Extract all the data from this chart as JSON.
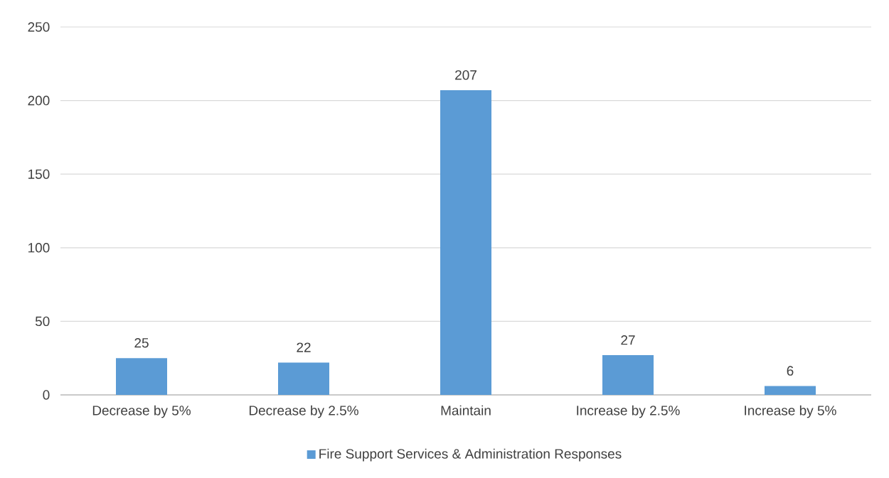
{
  "chart_data": {
    "type": "bar",
    "categories": [
      "Decrease by 5%",
      "Decrease by 2.5%",
      "Maintain",
      "Increase by 2.5%",
      "Increase by 5%"
    ],
    "series": [
      {
        "name": "Fire Support Services & Administration Responses",
        "color": "#5b9bd5",
        "values": [
          25,
          22,
          207,
          27,
          6
        ]
      }
    ],
    "ylim": [
      0,
      250
    ],
    "yticks": [
      0,
      50,
      100,
      150,
      200,
      250
    ],
    "grid": "y",
    "legend": "bottom",
    "data_labels": true
  }
}
